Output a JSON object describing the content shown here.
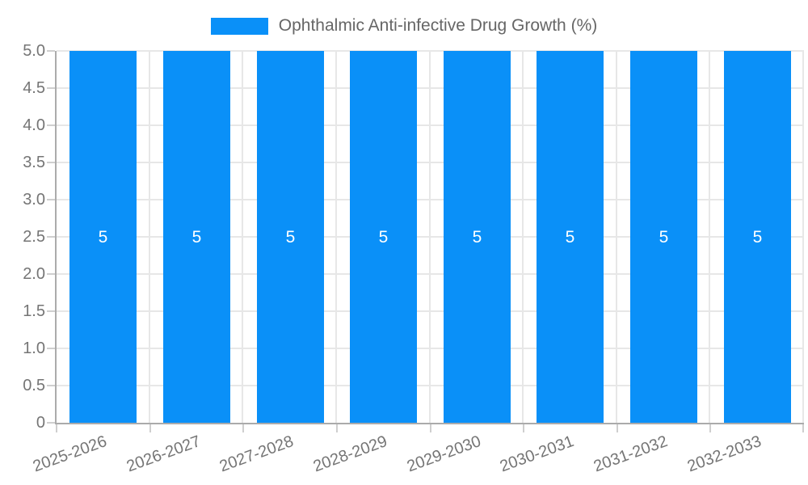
{
  "legend": {
    "label": "Ophthalmic Anti-infective Drug Growth (%)"
  },
  "chart_data": {
    "type": "bar",
    "title": "Ophthalmic Anti-infective Drug Growth (%)",
    "categories": [
      "2025-2026",
      "2026-2027",
      "2027-2028",
      "2028-2029",
      "2029-2030",
      "2030-2031",
      "2031-2032",
      "2032-2033"
    ],
    "values": [
      5,
      5,
      5,
      5,
      5,
      5,
      5,
      5
    ],
    "bar_labels": [
      "5",
      "5",
      "5",
      "5",
      "5",
      "5",
      "5",
      "5"
    ],
    "xlabel": "",
    "ylabel": "",
    "ylim": [
      0,
      5
    ],
    "y_ticks": [
      "0",
      "0.5",
      "1.0",
      "1.5",
      "2.0",
      "2.5",
      "3.0",
      "3.5",
      "4.0",
      "4.5",
      "5.0"
    ],
    "grid": true,
    "legend_position": "top",
    "colors": {
      "bar": "#0a90f8",
      "grid": "#e7e7e7",
      "axis": "#ababab",
      "tick": "#cfcfcf",
      "axis_label": "#757575",
      "legend_text": "#666666",
      "bar_label": "#ffffff",
      "background": "#ffffff"
    }
  }
}
